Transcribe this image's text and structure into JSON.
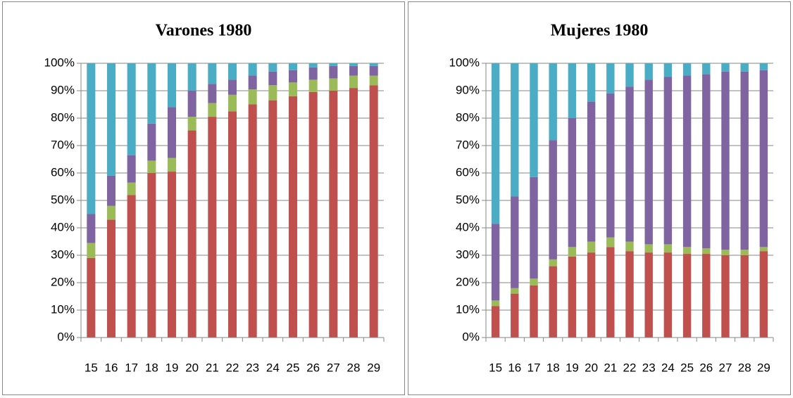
{
  "chart_data": [
    {
      "type": "bar",
      "stacked": true,
      "title": "Varones 1980",
      "categories": [
        "15",
        "16",
        "17",
        "18",
        "19",
        "20",
        "21",
        "22",
        "23",
        "24",
        "25",
        "26",
        "27",
        "28",
        "29"
      ],
      "series": [
        {
          "color": "#c0504d",
          "values": [
            29,
            43,
            52,
            60,
            60.5,
            75.5,
            80.5,
            82.5,
            85,
            86.5,
            88,
            89.5,
            90,
            91,
            92
          ]
        },
        {
          "color": "#9bbb59",
          "values": [
            5.5,
            5,
            4.5,
            4.5,
            5,
            5,
            5,
            6,
            5.5,
            5.5,
            5,
            4.5,
            4.5,
            4.5,
            3.5
          ]
        },
        {
          "color": "#8064a2",
          "values": [
            10.5,
            11,
            10,
            13.5,
            18.5,
            9.5,
            7,
            5.5,
            5,
            5,
            4.5,
            4.5,
            4.5,
            3.5,
            3.5
          ]
        },
        {
          "color": "#4bacc6",
          "values": [
            55,
            41,
            33.5,
            22,
            16,
            10,
            7.5,
            6,
            4.5,
            3,
            2.5,
            1.5,
            1,
            1,
            1
          ]
        }
      ],
      "ylim": [
        0,
        100
      ],
      "yticks": [
        {
          "value": 0,
          "label": "0%"
        },
        {
          "value": 10,
          "label": "10%"
        },
        {
          "value": 20,
          "label": "20%"
        },
        {
          "value": 30,
          "label": "30%"
        },
        {
          "value": 40,
          "label": "40%"
        },
        {
          "value": 50,
          "label": "50%"
        },
        {
          "value": 60,
          "label": "60%"
        },
        {
          "value": 70,
          "label": "70%"
        },
        {
          "value": 80,
          "label": "80%"
        },
        {
          "value": 90,
          "label": "90%"
        },
        {
          "value": 100,
          "label": "100%"
        }
      ],
      "grid": true
    },
    {
      "type": "bar",
      "stacked": true,
      "title": "Mujeres 1980",
      "categories": [
        "15",
        "16",
        "17",
        "18",
        "19",
        "20",
        "21",
        "22",
        "23",
        "24",
        "25",
        "26",
        "27",
        "28",
        "29"
      ],
      "series": [
        {
          "color": "#c0504d",
          "values": [
            11.5,
            16,
            19,
            26,
            29.5,
            31,
            33,
            31.5,
            31,
            31,
            30.5,
            30.5,
            30,
            30,
            31.5
          ]
        },
        {
          "color": "#9bbb59",
          "values": [
            2,
            2,
            2.5,
            2.5,
            3.5,
            4,
            3.5,
            3.5,
            3,
            3,
            2.5,
            2,
            2,
            2,
            1.5
          ]
        },
        {
          "color": "#8064a2",
          "values": [
            28,
            33.5,
            37,
            43.5,
            47,
            51,
            52.5,
            56.5,
            60,
            61,
            62.5,
            63.5,
            65,
            65,
            64.5
          ]
        },
        {
          "color": "#4bacc6",
          "values": [
            58.5,
            48.5,
            41.5,
            28,
            20,
            14,
            11,
            8.5,
            6,
            5,
            4.5,
            4,
            3,
            3,
            2.5
          ]
        }
      ],
      "ylim": [
        0,
        100
      ],
      "yticks": [
        {
          "value": 0,
          "label": "0%"
        },
        {
          "value": 10,
          "label": "10%"
        },
        {
          "value": 20,
          "label": "20%"
        },
        {
          "value": 30,
          "label": "30%"
        },
        {
          "value": 40,
          "label": "40%"
        },
        {
          "value": 50,
          "label": "50%"
        },
        {
          "value": 60,
          "label": "60%"
        },
        {
          "value": 70,
          "label": "70%"
        },
        {
          "value": 80,
          "label": "80%"
        },
        {
          "value": 90,
          "label": "90%"
        },
        {
          "value": 100,
          "label": "100%"
        }
      ],
      "grid": true
    }
  ]
}
